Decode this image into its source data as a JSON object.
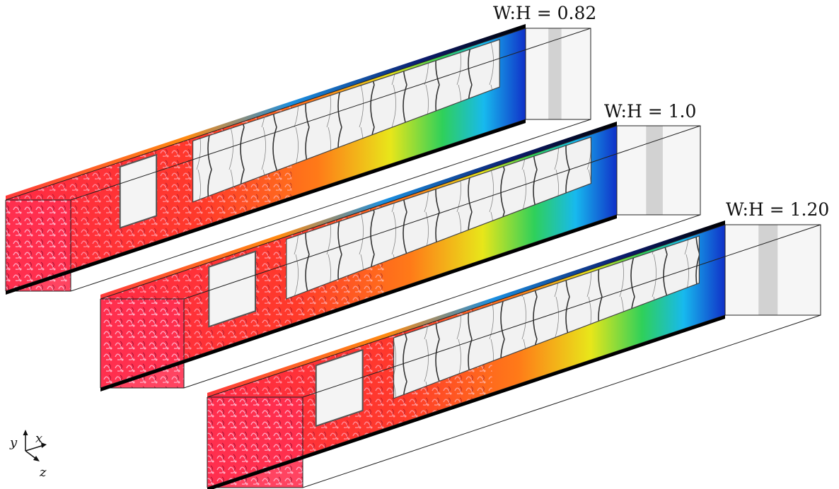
{
  "panels": [
    {
      "label": "W:H = 0.82",
      "aspect_ratio": 0.82
    },
    {
      "label": "W:H = 1.0",
      "aspect_ratio": 1.0
    },
    {
      "label": "W:H = 1.20",
      "aspect_ratio": 1.2
    }
  ],
  "axes": {
    "y": "y",
    "x": "x",
    "z": "z"
  },
  "colors": {
    "core_turbulence": "#ff2a45",
    "vortex_highlight": "#ffc4e4",
    "mixing_orange": "#ff7a18",
    "mixing_yellow": "#e8e61a",
    "mixing_green": "#2fd05a",
    "mixing_cyan": "#17b9ee",
    "mixing_blue": "#1030c8",
    "shock_gray": "#2a2a2a",
    "duct_outline": "#222222"
  }
}
